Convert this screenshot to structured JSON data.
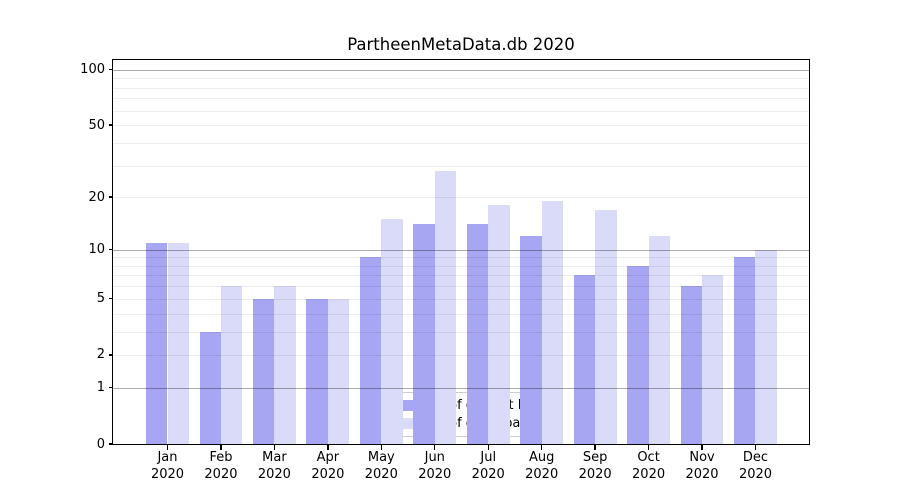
{
  "title": "PartheenMetaData.db 2020",
  "chart_data": {
    "type": "bar",
    "title": "PartheenMetaData.db 2020",
    "categories": [
      "Jan 2020",
      "Feb 2020",
      "Mar 2020",
      "Apr 2020",
      "May 2020",
      "Jun 2020",
      "Jul 2020",
      "Aug 2020",
      "Sep 2020",
      "Oct 2020",
      "Nov 2020",
      "Dec 2020"
    ],
    "series": [
      {
        "name": "Nb of distinct IPs",
        "color": "#a6a6f3",
        "values": [
          11,
          3,
          5,
          5,
          9,
          14,
          14,
          12,
          7,
          8,
          6,
          9
        ]
      },
      {
        "name": "Nb of downloads",
        "color": "#dadaf9",
        "values": [
          11,
          6,
          6,
          5,
          15,
          28,
          18,
          19,
          17,
          12,
          7,
          10
        ]
      }
    ],
    "xlabel": "",
    "ylabel": "",
    "yscale": "log1p",
    "ylim": [
      0,
      100
    ],
    "yticks": [
      0,
      1,
      2,
      5,
      10,
      20,
      50,
      100
    ],
    "major_gridlines": [
      1,
      10,
      100
    ],
    "minor_gridlines": [
      2,
      3,
      4,
      5,
      6,
      7,
      8,
      9,
      20,
      30,
      40,
      50,
      60,
      70,
      80,
      90
    ],
    "grid": true,
    "legend_position": "lower center"
  }
}
